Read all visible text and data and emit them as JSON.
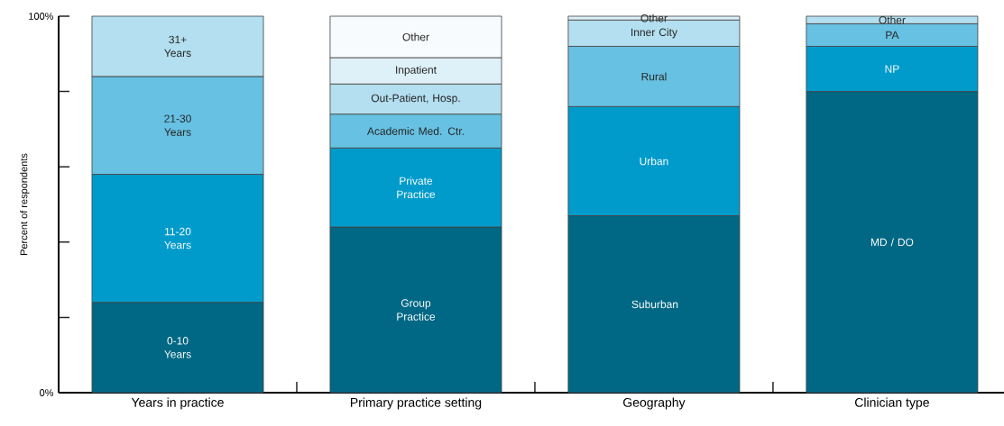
{
  "chart_data": {
    "type": "bar",
    "stacked": true,
    "ylabel": "Percent of respondents",
    "categories": [
      "Years in practice",
      "Primary practice setting",
      "Geography",
      "Clinician type"
    ],
    "ylim": [
      0,
      100
    ],
    "yticks": [
      {
        "value": 0,
        "label": "0%"
      },
      {
        "value": 20,
        "label": null
      },
      {
        "value": 40,
        "label": null
      },
      {
        "value": 60,
        "label": null
      },
      {
        "value": 80,
        "label": null
      },
      {
        "value": 100,
        "label": "100%"
      }
    ],
    "series": [
      {
        "name": "0-10 Years",
        "color": "#006884",
        "values": [
          24,
          null,
          null,
          null
        ]
      },
      {
        "name": "11-20 Years",
        "color": "#009bcb",
        "values": [
          34,
          null,
          null,
          null
        ]
      },
      {
        "name": "21-30 Years",
        "color": "#67c1e3",
        "values": [
          26,
          null,
          null,
          null
        ]
      },
      {
        "name": "31+ Years",
        "color": "#b3dff0",
        "values": [
          16,
          null,
          null,
          null
        ]
      },
      {
        "name": "Group Practice",
        "color": "#006884",
        "values": [
          null,
          44,
          null,
          null
        ]
      },
      {
        "name": "Private Practice",
        "color": "#009bcb",
        "values": [
          null,
          21,
          null,
          null
        ]
      },
      {
        "name": "Academic Med. Ctr.",
        "color": "#67c1e3",
        "values": [
          null,
          9,
          null,
          null
        ]
      },
      {
        "name": "Out-Patient, Hosp.",
        "color": "#b3dff0",
        "values": [
          null,
          8,
          null,
          null
        ]
      },
      {
        "name": "Inpatient",
        "color": "#dff1f8",
        "values": [
          null,
          7,
          null,
          null
        ]
      },
      {
        "name": "Other",
        "color": "#f8fbfd",
        "values": [
          null,
          11,
          null,
          null
        ]
      },
      {
        "name": "Suburban",
        "color": "#006884",
        "values": [
          null,
          null,
          47,
          null
        ]
      },
      {
        "name": "Urban",
        "color": "#009bcb",
        "values": [
          null,
          null,
          29,
          null
        ]
      },
      {
        "name": "Rural",
        "color": "#67c1e3",
        "values": [
          null,
          null,
          16,
          null
        ]
      },
      {
        "name": "Inner City",
        "color": "#b3dff0",
        "values": [
          null,
          null,
          7,
          null
        ]
      },
      {
        "name": "Other",
        "color": "#dff1f8",
        "values": [
          null,
          null,
          1,
          null
        ]
      },
      {
        "name": "MD / DO",
        "color": "#006884",
        "values": [
          null,
          null,
          null,
          80
        ]
      },
      {
        "name": "NP",
        "color": "#009bcb",
        "values": [
          null,
          null,
          null,
          12
        ]
      },
      {
        "name": "PA",
        "color": "#67c1e3",
        "values": [
          null,
          null,
          null,
          6
        ]
      },
      {
        "name": "Other",
        "color": "#b3dff0",
        "values": [
          null,
          null,
          null,
          2
        ]
      }
    ]
  }
}
